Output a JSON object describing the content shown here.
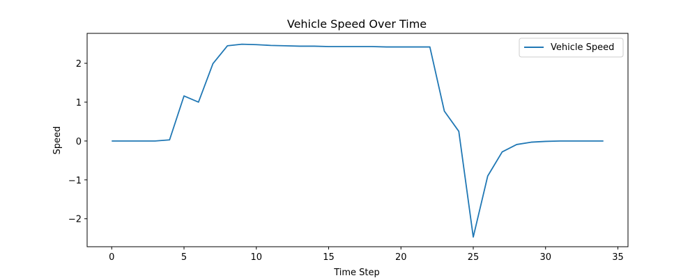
{
  "chart_data": {
    "type": "line",
    "title": "Vehicle Speed Over Time",
    "xlabel": "Time Step",
    "ylabel": "Speed",
    "xlim": [
      -1.7,
      35.7
    ],
    "ylim": [
      -2.72,
      2.77
    ],
    "xticks": [
      0,
      5,
      10,
      15,
      20,
      25,
      30,
      35
    ],
    "xtick_labels": [
      "0",
      "5",
      "10",
      "15",
      "20",
      "25",
      "30",
      "35"
    ],
    "yticks": [
      -2,
      -1,
      0,
      1,
      2
    ],
    "ytick_labels": [
      "−2",
      "−1",
      "0",
      "1",
      "2"
    ],
    "grid": false,
    "legend": "top-right",
    "series": [
      {
        "name": "Vehicle Speed",
        "color": "#1f77b4",
        "x": [
          0,
          1,
          2,
          3,
          4,
          5,
          6,
          7,
          8,
          9,
          10,
          11,
          12,
          13,
          14,
          15,
          16,
          17,
          18,
          19,
          20,
          21,
          22,
          23,
          24,
          25,
          26,
          27,
          28,
          29,
          30,
          31,
          32,
          33,
          34
        ],
        "y": [
          0,
          0,
          0,
          0,
          0.03,
          1.16,
          1.0,
          1.99,
          2.45,
          2.49,
          2.48,
          2.46,
          2.45,
          2.44,
          2.44,
          2.43,
          2.43,
          2.43,
          2.43,
          2.42,
          2.42,
          2.42,
          2.42,
          0.77,
          0.25,
          -2.47,
          -0.9,
          -0.28,
          -0.09,
          -0.03,
          -0.01,
          0,
          0,
          0,
          0
        ]
      }
    ]
  }
}
